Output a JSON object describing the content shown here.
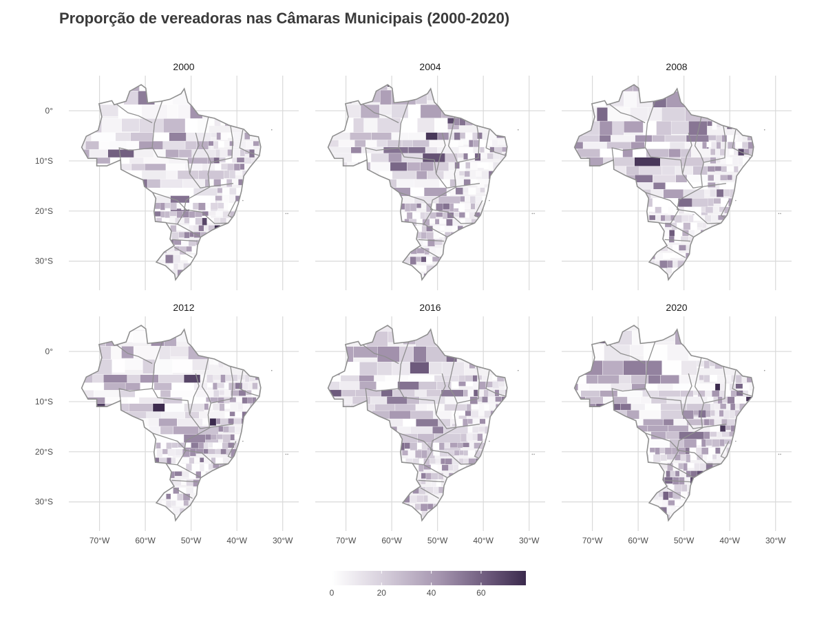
{
  "title": "Proporção de vereadoras nas Câmaras Municipais (2000-2020)",
  "colors": {
    "low": "#ffffff",
    "high": "#3b2a4d",
    "border": "#8f8f8f",
    "grid": "#d9d9d9"
  },
  "facets": [
    {
      "label": "2000",
      "row": 0,
      "col": 0,
      "seed": 11
    },
    {
      "label": "2004",
      "row": 0,
      "col": 1,
      "seed": 23
    },
    {
      "label": "2008",
      "row": 0,
      "col": 2,
      "seed": 37
    },
    {
      "label": "2012",
      "row": 1,
      "col": 0,
      "seed": 41
    },
    {
      "label": "2016",
      "row": 1,
      "col": 1,
      "seed": 53
    },
    {
      "label": "2020",
      "row": 1,
      "col": 2,
      "seed": 67
    }
  ],
  "axes": {
    "x_ticks": [
      {
        "value": -70,
        "label": "70°W"
      },
      {
        "value": -60,
        "label": "60°W"
      },
      {
        "value": -50,
        "label": "50°W"
      },
      {
        "value": -40,
        "label": "40°W"
      },
      {
        "value": -30,
        "label": "30°W"
      }
    ],
    "y_ticks": [
      {
        "value": 0,
        "label": "0°"
      },
      {
        "value": -10,
        "label": "10°S"
      },
      {
        "value": -20,
        "label": "20°S"
      },
      {
        "value": -30,
        "label": "30°S"
      }
    ],
    "lon_range": [
      -76.7,
      -26.5
    ],
    "lat_range": [
      -35.8,
      7.0
    ]
  },
  "legend": {
    "min": 0,
    "max": 78,
    "ticks": [
      {
        "value": 0,
        "label": "0"
      },
      {
        "value": 20,
        "label": "20"
      },
      {
        "value": 40,
        "label": "40"
      },
      {
        "value": 60,
        "label": "60"
      }
    ],
    "position": "bottom"
  }
}
